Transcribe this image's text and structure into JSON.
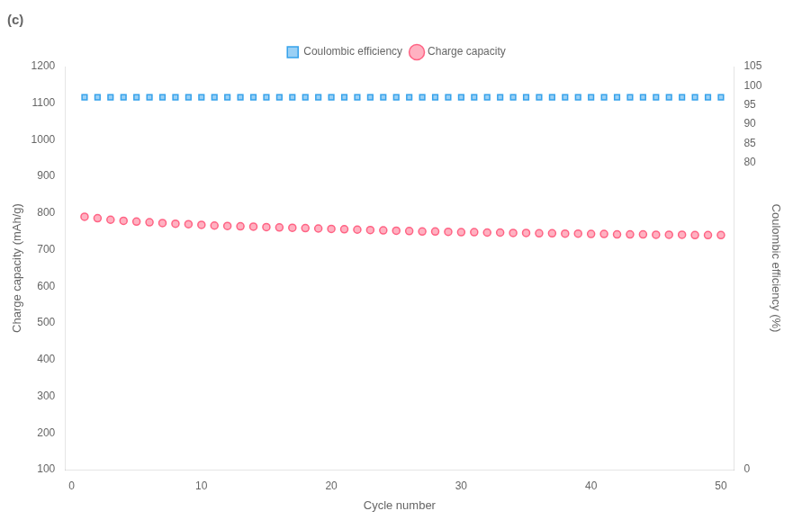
{
  "chart_data": {
    "type": "scatter",
    "title": "(c)",
    "xlabel": "Cycle number",
    "ylabel": "Charge capacity (mAh/g)",
    "y2label": "Coulombic efficiency (%)",
    "x": [
      1,
      2,
      3,
      4,
      5,
      6,
      7,
      8,
      9,
      10,
      11,
      12,
      13,
      14,
      15,
      16,
      17,
      18,
      19,
      20,
      21,
      22,
      23,
      24,
      25,
      26,
      27,
      28,
      29,
      30,
      31,
      32,
      33,
      34,
      35,
      36,
      37,
      38,
      39,
      40,
      41,
      42,
      43,
      44,
      45,
      46,
      47,
      48,
      49,
      50
    ],
    "series": [
      {
        "name": "Coulombic efficiency",
        "axis": "y2",
        "marker": "square",
        "values": [
          97.0,
          97.0,
          97.0,
          97.0,
          97.0,
          97.0,
          97.0,
          97.0,
          97.0,
          97.0,
          97.0,
          97.0,
          97.0,
          97.0,
          97.0,
          97.0,
          97.0,
          97.0,
          97.0,
          97.0,
          97.0,
          97.0,
          97.0,
          97.0,
          97.0,
          97.0,
          97.0,
          97.0,
          97.0,
          97.0,
          97.0,
          97.0,
          97.0,
          97.0,
          97.0,
          97.0,
          97.0,
          97.0,
          97.0,
          97.0,
          97.0,
          97.0,
          97.0,
          97.0,
          97.0,
          97.0,
          97.0,
          97.0,
          97.0,
          97.0
        ]
      },
      {
        "name": "Charge capacity",
        "axis": "y",
        "marker": "circle",
        "values": [
          790,
          786,
          782,
          779,
          777,
          775,
          773,
          771,
          770,
          768,
          766,
          765,
          764,
          763,
          762,
          761,
          760,
          759,
          758,
          757,
          756,
          755,
          754,
          753,
          752,
          751,
          750,
          750,
          749,
          748,
          748,
          747,
          747,
          746,
          746,
          745,
          745,
          744,
          744,
          743,
          743,
          742,
          742,
          742,
          741,
          741,
          741,
          740,
          740,
          740
        ]
      }
    ],
    "xlim": [
      -0.5,
      51
    ],
    "xticks": [
      0,
      10,
      20,
      30,
      40,
      50
    ],
    "ylim": [
      100,
      1200
    ],
    "yticks": [
      100,
      200,
      300,
      400,
      500,
      600,
      700,
      800,
      900,
      1000,
      1100,
      1200
    ],
    "y2lim": [
      0,
      105
    ],
    "y2ticks": [
      0,
      80,
      85,
      90,
      95,
      100,
      105
    ],
    "grid": false,
    "legend": "top"
  }
}
